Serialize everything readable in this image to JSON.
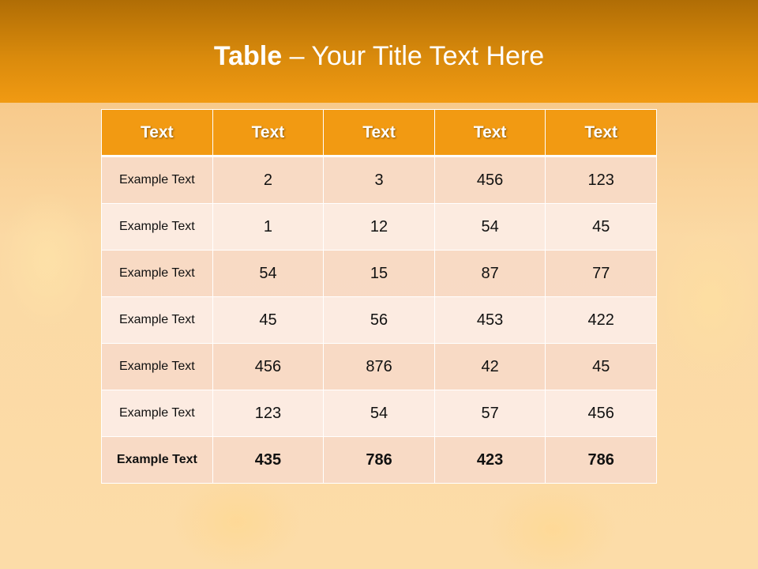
{
  "title": {
    "bold": "Table",
    "rest": " – Your Title Text Here"
  },
  "table": {
    "headers": [
      "Text",
      "Text",
      "Text",
      "Text",
      "Text"
    ],
    "rows": [
      [
        "Example Text",
        "2",
        "3",
        "456",
        "123"
      ],
      [
        "Example Text",
        "1",
        "12",
        "54",
        "45"
      ],
      [
        "Example Text",
        "54",
        "15",
        "87",
        "77"
      ],
      [
        "Example Text",
        "45",
        "56",
        "453",
        "422"
      ],
      [
        "Example Text",
        "456",
        "876",
        "42",
        "45"
      ],
      [
        "Example Text",
        "123",
        "54",
        "57",
        "456"
      ],
      [
        "Example Text",
        "435",
        "786",
        "423",
        "786"
      ]
    ]
  },
  "colors": {
    "header": "#f29a12",
    "row_dark": "#f8dac6",
    "row_light": "#fcece4"
  }
}
